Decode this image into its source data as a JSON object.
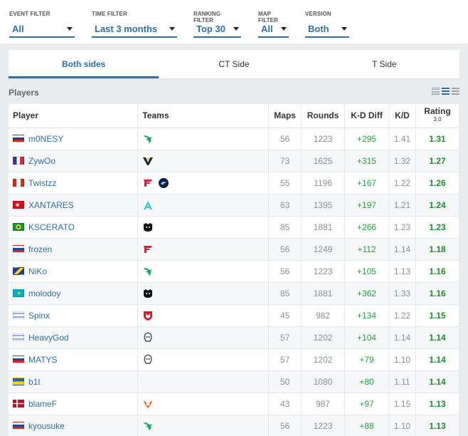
{
  "filters": [
    {
      "label": "EVENT FILTER",
      "value": "All"
    },
    {
      "label": "TIME FILTER",
      "value": "Last 3 months"
    },
    {
      "label": "RANKING FILTER",
      "value": "Top 30"
    },
    {
      "label": "MAP FILTER",
      "value": "All"
    },
    {
      "label": "VERSION",
      "value": "Both"
    }
  ],
  "tabs": [
    {
      "label": "Both sides",
      "active": true
    },
    {
      "label": "CT Side",
      "active": false
    },
    {
      "label": "T Side",
      "active": false
    }
  ],
  "section_title": "Players",
  "table": {
    "headers": {
      "player": "Player",
      "teams": "Teams",
      "maps": "Maps",
      "rounds": "Rounds",
      "kd_diff": "K-D Diff",
      "kd": "K/D",
      "rating": "Rating",
      "rating_version": "3.0"
    },
    "rows": [
      {
        "player": "m0NESY",
        "flag": "russia",
        "teams": [
          "falcons-icon"
        ],
        "maps": "56",
        "rounds": "1223",
        "kd_diff": "+295",
        "kd": "1.41",
        "rating": "1.31"
      },
      {
        "player": "ZywOo",
        "flag": "france",
        "teams": [
          "vitality-icon"
        ],
        "maps": "73",
        "rounds": "1625",
        "kd_diff": "+315",
        "kd": "1.32",
        "rating": "1.27"
      },
      {
        "player": "Twistzz",
        "flag": "canada",
        "teams": [
          "faze-icon",
          "liquid-icon"
        ],
        "maps": "55",
        "rounds": "1196",
        "kd_diff": "+167",
        "kd": "1.22",
        "rating": "1.26"
      },
      {
        "player": "XANTARES",
        "flag": "turkey",
        "teams": [
          "aurora-icon"
        ],
        "maps": "63",
        "rounds": "1395",
        "kd_diff": "+197",
        "kd": "1.21",
        "rating": "1.24"
      },
      {
        "player": "KSCERATO",
        "flag": "brazil",
        "teams": [
          "furia-icon"
        ],
        "maps": "85",
        "rounds": "1881",
        "kd_diff": "+266",
        "kd": "1.23",
        "rating": "1.23"
      },
      {
        "player": "frozen",
        "flag": "slovakia",
        "teams": [
          "faze-icon"
        ],
        "maps": "56",
        "rounds": "1249",
        "kd_diff": "+112",
        "kd": "1.14",
        "rating": "1.18"
      },
      {
        "player": "NiKo",
        "flag": "bosnia",
        "teams": [
          "falcons-icon"
        ],
        "maps": "56",
        "rounds": "1223",
        "kd_diff": "+105",
        "kd": "1.13",
        "rating": "1.16"
      },
      {
        "player": "molodoy",
        "flag": "kazakhstan",
        "teams": [
          "furia-icon"
        ],
        "maps": "85",
        "rounds": "1881",
        "kd_diff": "+362",
        "kd": "1.33",
        "rating": "1.16"
      },
      {
        "player": "Spinx",
        "flag": "israel",
        "teams": [
          "mouz-icon"
        ],
        "maps": "45",
        "rounds": "982",
        "kd_diff": "+134",
        "kd": "1.22",
        "rating": "1.15"
      },
      {
        "player": "HeavyGod",
        "flag": "israel",
        "teams": [
          "g2-icon"
        ],
        "maps": "57",
        "rounds": "1202",
        "kd_diff": "+104",
        "kd": "1.14",
        "rating": "1.14"
      },
      {
        "player": "MATYS",
        "flag": "slovakia",
        "teams": [
          "g2-icon"
        ],
        "maps": "57",
        "rounds": "1202",
        "kd_diff": "+79",
        "kd": "1.10",
        "rating": "1.14"
      },
      {
        "player": "b1t",
        "flag": "ukraine",
        "teams": [],
        "maps": "50",
        "rounds": "1080",
        "kd_diff": "+80",
        "kd": "1.11",
        "rating": "1.14"
      },
      {
        "player": "blameF",
        "flag": "denmark",
        "teams": [
          "fnatic-icon"
        ],
        "maps": "43",
        "rounds": "987",
        "kd_diff": "+97",
        "kd": "1.15",
        "rating": "1.13"
      },
      {
        "player": "kyousuke",
        "flag": "russia",
        "teams": [
          "falcons-icon"
        ],
        "maps": "56",
        "rounds": "1223",
        "kd_diff": "+88",
        "kd": "1.10",
        "rating": "1.13"
      }
    ]
  },
  "colors": {
    "accent": "#2b6ea8",
    "positive": "#1ea33a",
    "rating": "#1c8c2c"
  }
}
